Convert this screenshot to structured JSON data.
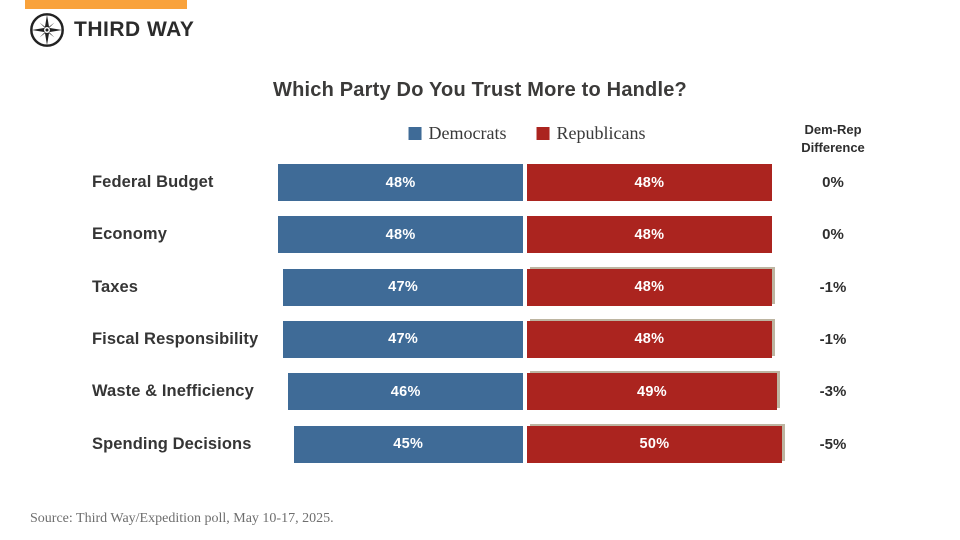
{
  "brand": {
    "name": "THIRD WAY",
    "accent_color": "#F9A23B",
    "logo_icon": "compass-star-icon"
  },
  "chart_data": {
    "type": "bar",
    "orientation": "horizontal-paired",
    "title": "Which Party Do You Trust More to Handle?",
    "legend": [
      {
        "label": "Democrats",
        "color": "#3F6B97"
      },
      {
        "label": "Republicans",
        "color": "#AB241F"
      }
    ],
    "diff_header": "Dem-Rep\nDifference",
    "categories": [
      "Federal Budget",
      "Economy",
      "Taxes",
      "Fiscal Responsibility",
      "Waste & Inefficiency",
      "Spending Decisions"
    ],
    "series": [
      {
        "name": "Democrats",
        "values": [
          48,
          48,
          47,
          47,
          46,
          45
        ],
        "labels": [
          "48%",
          "48%",
          "47%",
          "47%",
          "46%",
          "45%"
        ]
      },
      {
        "name": "Republicans",
        "values": [
          48,
          48,
          48,
          48,
          49,
          50
        ],
        "labels": [
          "48%",
          "48%",
          "48%",
          "48%",
          "49%",
          "50%"
        ]
      }
    ],
    "difference": [
      "0%",
      "0%",
      "-1%",
      "-1%",
      "-3%",
      "-5%"
    ],
    "value_suffix": "%",
    "axis": "none",
    "grid": false,
    "legend_position": "top-center"
  },
  "source": "Source: Third Way/Expedition poll, May 10-17, 2025."
}
